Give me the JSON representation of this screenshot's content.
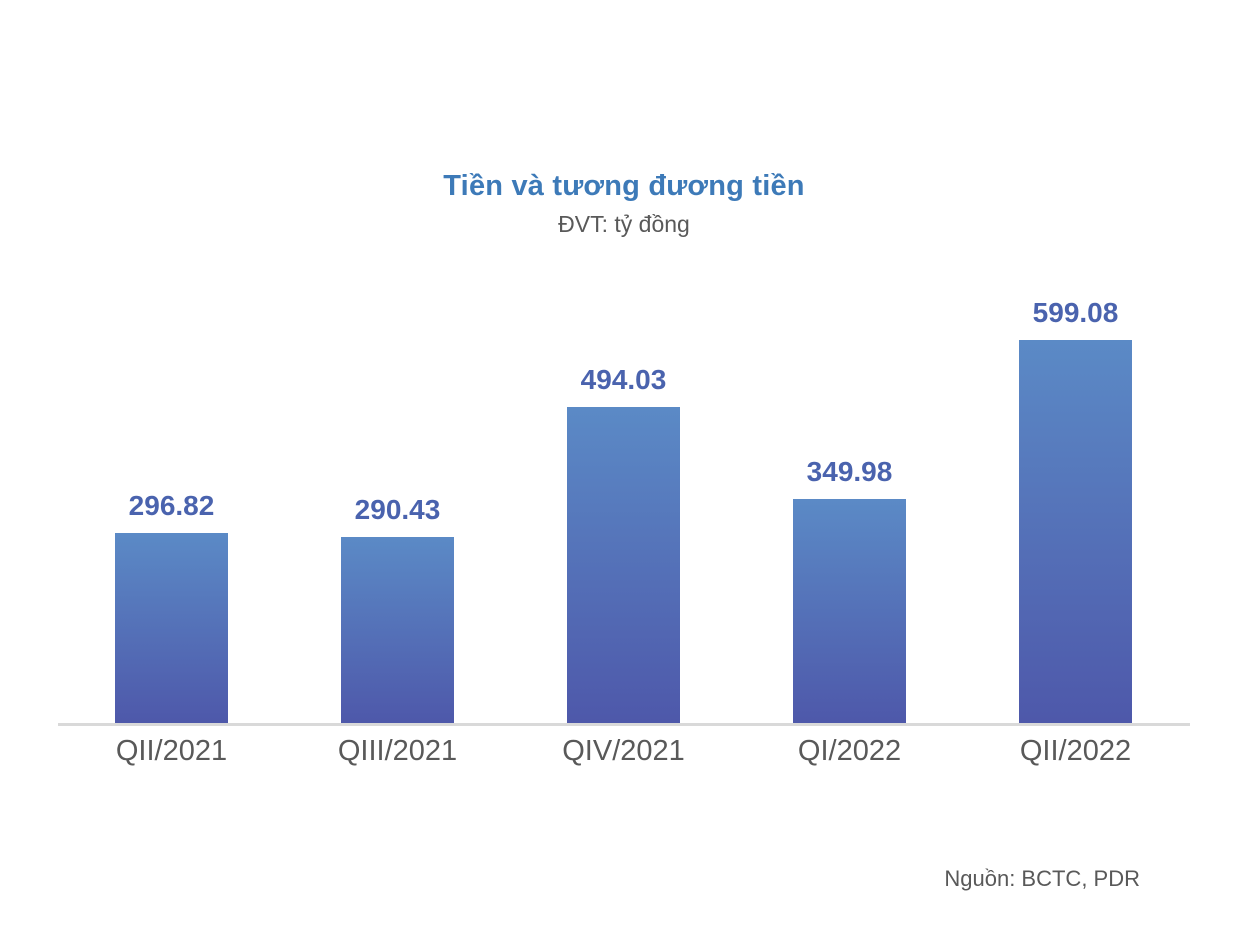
{
  "header": {
    "title": "Tiền và tương đương tiền",
    "subtitle": "ĐVT: tỷ đồng"
  },
  "footer": {
    "source": "Nguồn: BCTC, PDR"
  },
  "colors": {
    "title": "#3D7AB8",
    "subtitle": "#595959",
    "value_label": "#4A63AE",
    "axis_label": "#595959",
    "source": "#595959",
    "bar_top": "#5B8AC6",
    "bar_bottom": "#4E58AA",
    "axis_line": "#D9D9D9"
  },
  "chart_data": {
    "type": "bar",
    "title": "Tiền và tương đương tiền",
    "subtitle": "ĐVT: tỷ đồng",
    "unit": "tỷ đồng",
    "categories": [
      "QII/2021",
      "QIII/2021",
      "QIV/2021",
      "QI/2022",
      "QII/2022"
    ],
    "values": [
      296.82,
      290.43,
      494.03,
      349.98,
      599.08
    ],
    "value_labels": [
      "296.82",
      "290.43",
      "494.03",
      "349.98",
      "599.08"
    ],
    "source": "Nguồn: BCTC, PDR",
    "ylim": [
      0,
      650
    ],
    "grid": false,
    "data_labels": true,
    "legend": "none",
    "bar_fill": "vertical-gradient #5B8AC6 to #4E58AA"
  }
}
